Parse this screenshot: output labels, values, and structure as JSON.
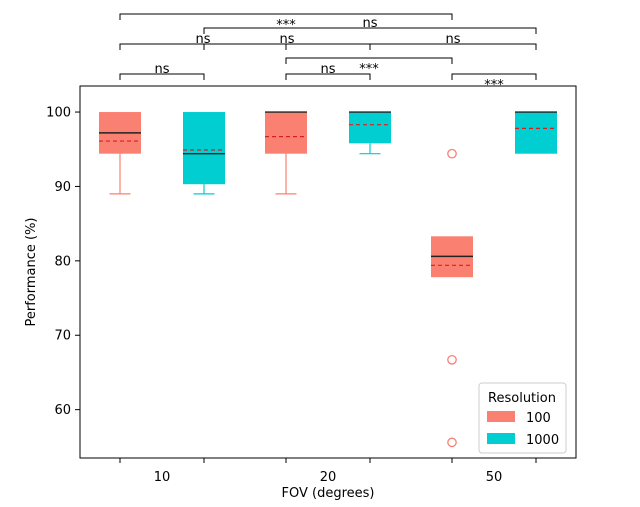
{
  "chart_data": {
    "type": "boxplot",
    "xlabel": "FOV (degrees)",
    "ylabel": "Performance (%)",
    "ylim": [
      53.5,
      103.5
    ],
    "yticks": [
      60,
      70,
      80,
      90,
      100
    ],
    "categories": [
      "10",
      "20",
      "50"
    ],
    "legend": {
      "title": "Resolution",
      "placement": "lower-right",
      "entries": [
        {
          "label": "100",
          "color": "#FA8072"
        },
        {
          "label": "1000",
          "color": "#00CED1"
        }
      ]
    },
    "series": [
      {
        "name": "100",
        "color": "#FA8072",
        "boxes": [
          {
            "category": "10",
            "whisker_low": 89,
            "q1": 94.4,
            "median": 97.2,
            "mean": 96.1,
            "q3": 100,
            "whisker_high": 100,
            "outliers": []
          },
          {
            "category": "20",
            "whisker_low": 89,
            "q1": 94.4,
            "median": 100,
            "mean": 96.7,
            "q3": 100,
            "whisker_high": 100,
            "outliers": []
          },
          {
            "category": "50",
            "whisker_low": 77.8,
            "q1": 77.8,
            "median": 80.6,
            "mean": 79.4,
            "q3": 83.3,
            "whisker_high": 83.3,
            "outliers": [
              94.4,
              66.7,
              55.6
            ]
          }
        ]
      },
      {
        "name": "1000",
        "color": "#00CED1",
        "boxes": [
          {
            "category": "10",
            "whisker_low": 89,
            "q1": 90.3,
            "median": 94.4,
            "mean": 94.9,
            "q3": 100,
            "whisker_high": 100,
            "outliers": []
          },
          {
            "category": "20",
            "whisker_low": 94.4,
            "q1": 95.8,
            "median": 100,
            "mean": 98.3,
            "q3": 100,
            "whisker_high": 100,
            "outliers": []
          },
          {
            "category": "50",
            "whisker_low": 94.4,
            "q1": 94.4,
            "median": 100,
            "mean": 97.8,
            "q3": 100,
            "whisker_high": 100,
            "outliers": []
          }
        ]
      }
    ],
    "significance": [
      {
        "from": "10-100",
        "to": "50-100",
        "label": "***"
      },
      {
        "from": "10-1000",
        "to": "50-1000",
        "label": "ns"
      },
      {
        "from": "10-100",
        "to": "20-100",
        "label": "ns"
      },
      {
        "from": "10-1000",
        "to": "20-1000",
        "label": "ns"
      },
      {
        "from": "20-1000",
        "to": "50-1000",
        "label": "ns"
      },
      {
        "from": "20-100",
        "to": "50-100",
        "label": "***"
      },
      {
        "from": "10-100",
        "to": "10-1000",
        "label": "ns"
      },
      {
        "from": "20-100",
        "to": "20-1000",
        "label": "ns"
      },
      {
        "from": "50-100",
        "to": "50-1000",
        "label": "***"
      }
    ]
  }
}
